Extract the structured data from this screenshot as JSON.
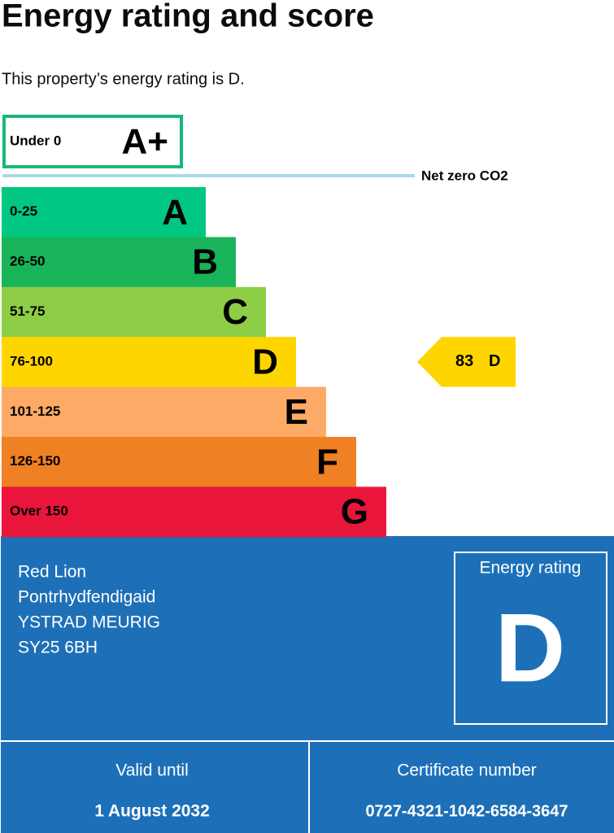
{
  "header": {
    "title": "Energy rating and score",
    "intro": "This property’s energy rating is D."
  },
  "top_band": {
    "range": "Under 0",
    "letter": "A+",
    "color": "#17b978"
  },
  "net_zero": {
    "label": "Net zero CO2",
    "color": "#a6d9e8"
  },
  "bands": [
    {
      "range": "0-25",
      "letter": "A",
      "color": "#00c781"
    },
    {
      "range": "26-50",
      "letter": "B",
      "color": "#19b459"
    },
    {
      "range": "51-75",
      "letter": "C",
      "color": "#8dce46"
    },
    {
      "range": "76-100",
      "letter": "D",
      "color": "#ffd500"
    },
    {
      "range": "101-125",
      "letter": "E",
      "color": "#fcaa65"
    },
    {
      "range": "126-150",
      "letter": "F",
      "color": "#ef8023"
    },
    {
      "range": "Over 150",
      "letter": "G",
      "color": "#e9153b"
    }
  ],
  "current": {
    "score": "83",
    "letter": "D"
  },
  "certificate": {
    "address": [
      "Red Lion",
      "Pontrhydfendigaid",
      "YSTRAD MEURIG",
      "SY25 6BH"
    ],
    "rating_label": "Energy rating",
    "rating": "D",
    "valid_label": "Valid until",
    "valid_date": "1 August 2032",
    "number_label": "Certificate number",
    "number": "0727-4321-1042-6584-3647"
  }
}
